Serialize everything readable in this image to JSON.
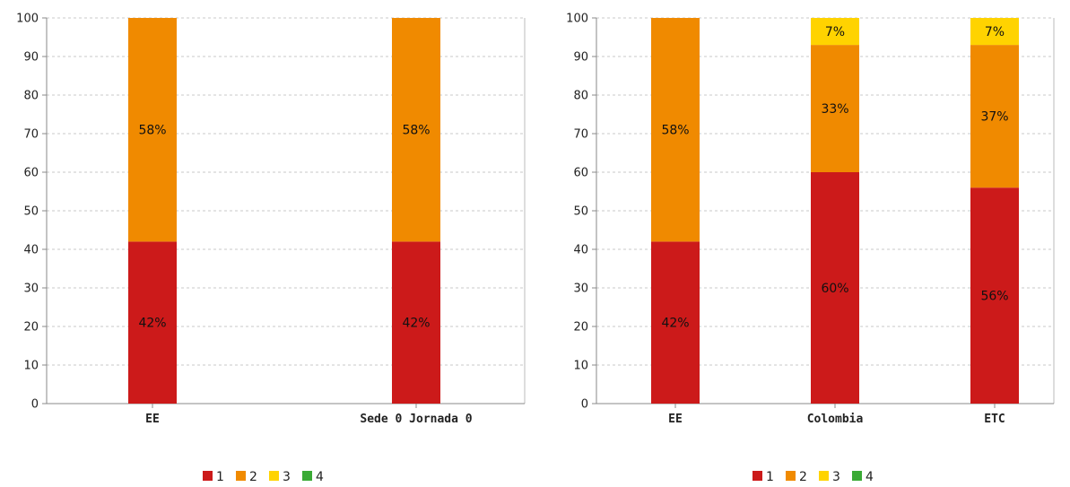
{
  "chart_data": [
    {
      "type": "bar",
      "stacked": true,
      "categories": [
        "EE",
        "Sede 0 Jornada 0"
      ],
      "series": [
        {
          "name": "1",
          "color": "#cc1a1a",
          "values": [
            42,
            42
          ],
          "labels": [
            "42%",
            "42%"
          ]
        },
        {
          "name": "2",
          "color": "#f08a00",
          "values": [
            58,
            58
          ],
          "labels": [
            "58%",
            "58%"
          ]
        },
        {
          "name": "3",
          "color": "#ffd300",
          "values": [
            0,
            0
          ],
          "labels": [
            "",
            ""
          ]
        },
        {
          "name": "4",
          "color": "#3aaa35",
          "values": [
            0,
            0
          ],
          "labels": [
            "",
            ""
          ]
        }
      ],
      "ylim": [
        0,
        100
      ],
      "yticks": [
        0,
        10,
        20,
        30,
        40,
        50,
        60,
        70,
        80,
        90,
        100
      ],
      "grid": true,
      "legend_position": "bottom"
    },
    {
      "type": "bar",
      "stacked": true,
      "categories": [
        "EE",
        "Colombia",
        "ETC"
      ],
      "series": [
        {
          "name": "1",
          "color": "#cc1a1a",
          "values": [
            42,
            60,
            56
          ],
          "labels": [
            "42%",
            "60%",
            "56%"
          ]
        },
        {
          "name": "2",
          "color": "#f08a00",
          "values": [
            58,
            33,
            37
          ],
          "labels": [
            "58%",
            "33%",
            "37%"
          ]
        },
        {
          "name": "3",
          "color": "#ffd300",
          "values": [
            0,
            7,
            7
          ],
          "labels": [
            "",
            "7%",
            "7%"
          ]
        },
        {
          "name": "4",
          "color": "#3aaa35",
          "values": [
            0,
            0,
            0
          ],
          "labels": [
            "",
            "",
            ""
          ]
        }
      ],
      "ylim": [
        0,
        100
      ],
      "yticks": [
        0,
        10,
        20,
        30,
        40,
        50,
        60,
        70,
        80,
        90,
        100
      ],
      "grid": true,
      "legend_position": "bottom"
    }
  ]
}
